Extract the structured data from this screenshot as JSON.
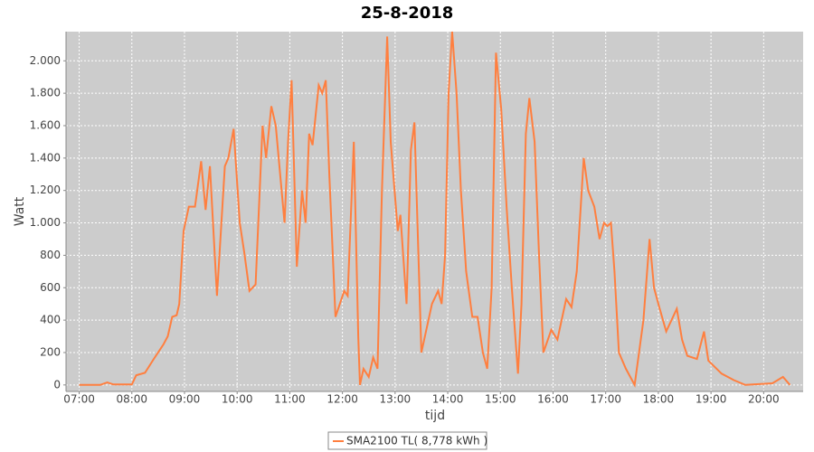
{
  "chart_data": {
    "type": "line",
    "title": "25-8-2018",
    "x_label": "tijd",
    "y_label": "Watt",
    "xlim": [
      "06:45",
      "20:45"
    ],
    "ylim": [
      -40,
      2180
    ],
    "xticks": [
      "07:00",
      "08:00",
      "09:00",
      "10:00",
      "11:00",
      "12:00",
      "13:00",
      "14:00",
      "15:00",
      "16:00",
      "17:00",
      "18:00",
      "19:00",
      "20:00"
    ],
    "yticks": [
      0,
      200,
      400,
      600,
      800,
      {
        "value": 1000,
        "label": "1.000"
      },
      {
        "value": 1200,
        "label": "1.200"
      },
      {
        "value": 1400,
        "label": "1.400"
      },
      {
        "value": 1600,
        "label": "1.600"
      },
      {
        "value": 1800,
        "label": "1.800"
      },
      {
        "value": 2000,
        "label": "2.000"
      }
    ],
    "grid": true,
    "x": [
      "07:00",
      "07:24",
      "07:32",
      "07:39",
      "08:00",
      "08:05",
      "08:15",
      "08:25",
      "08:36",
      "08:41",
      "08:46",
      "08:51",
      "08:54",
      "08:59",
      "09:05",
      "09:12",
      "09:19",
      "09:24",
      "09:29",
      "09:37",
      "09:46",
      "09:50",
      "09:56",
      "10:03",
      "10:08",
      "10:14",
      "10:21",
      "10:29",
      "10:33",
      "10:39",
      "10:44",
      "10:54",
      "10:58",
      "11:02",
      "11:08",
      "11:14",
      "11:18",
      "11:22",
      "11:26",
      "11:33",
      "11:37",
      "11:41",
      "11:45",
      "11:52",
      "12:02",
      "12:06",
      "12:13",
      "12:18",
      "12:20",
      "12:24",
      "12:30",
      "12:35",
      "12:40",
      "12:45",
      "12:51",
      "12:55",
      "13:03",
      "13:06",
      "13:13",
      "13:18",
      "13:22",
      "13:30",
      "13:42",
      "13:49",
      "13:53",
      "13:57",
      "14:01",
      "14:05",
      "14:10",
      "14:15",
      "14:21",
      "14:28",
      "14:34",
      "14:40",
      "14:45",
      "14:50",
      "14:55",
      "15:01",
      "15:07",
      "15:13",
      "15:20",
      "15:24",
      "15:29",
      "15:33",
      "15:39",
      "15:44",
      "15:49",
      "15:58",
      "16:05",
      "16:15",
      "16:21",
      "16:27",
      "16:35",
      "16:40",
      "16:47",
      "16:53",
      "16:58",
      "17:02",
      "17:06",
      "17:10",
      "17:15",
      "17:23",
      "17:33",
      "17:43",
      "17:50",
      "17:55",
      "18:01",
      "18:09",
      "18:21",
      "18:27",
      "18:33",
      "18:44",
      "18:52",
      "18:57",
      "19:12",
      "19:26",
      "19:39",
      "20:10",
      "20:22",
      "20:30"
    ],
    "series": [
      {
        "name": "SMA2100 TL( 8,778 kWh )",
        "color": "#ff7f3f",
        "values": [
          0,
          0,
          15,
          3,
          3,
          60,
          75,
          160,
          250,
          300,
          420,
          430,
          500,
          950,
          1100,
          1100,
          1380,
          1080,
          1350,
          550,
          1350,
          1400,
          1580,
          1000,
          820,
          580,
          620,
          1600,
          1400,
          1720,
          1600,
          1000,
          1500,
          1880,
          730,
          1200,
          1000,
          1550,
          1480,
          1850,
          1800,
          1880,
          1300,
          420,
          580,
          550,
          1500,
          300,
          0,
          100,
          50,
          170,
          100,
          1200,
          2150,
          1500,
          950,
          1050,
          500,
          1450,
          1620,
          200,
          500,
          580,
          500,
          800,
          1800,
          2180,
          1800,
          1200,
          700,
          420,
          420,
          200,
          100,
          600,
          2050,
          1700,
          1100,
          600,
          70,
          500,
          1550,
          1770,
          1500,
          800,
          200,
          340,
          280,
          530,
          480,
          700,
          1400,
          1200,
          1100,
          900,
          1000,
          980,
          1000,
          700,
          200,
          100,
          0,
          400,
          900,
          600,
          480,
          330,
          470,
          280,
          180,
          160,
          330,
          150,
          70,
          30,
          0,
          10,
          50,
          0
        ]
      }
    ]
  }
}
